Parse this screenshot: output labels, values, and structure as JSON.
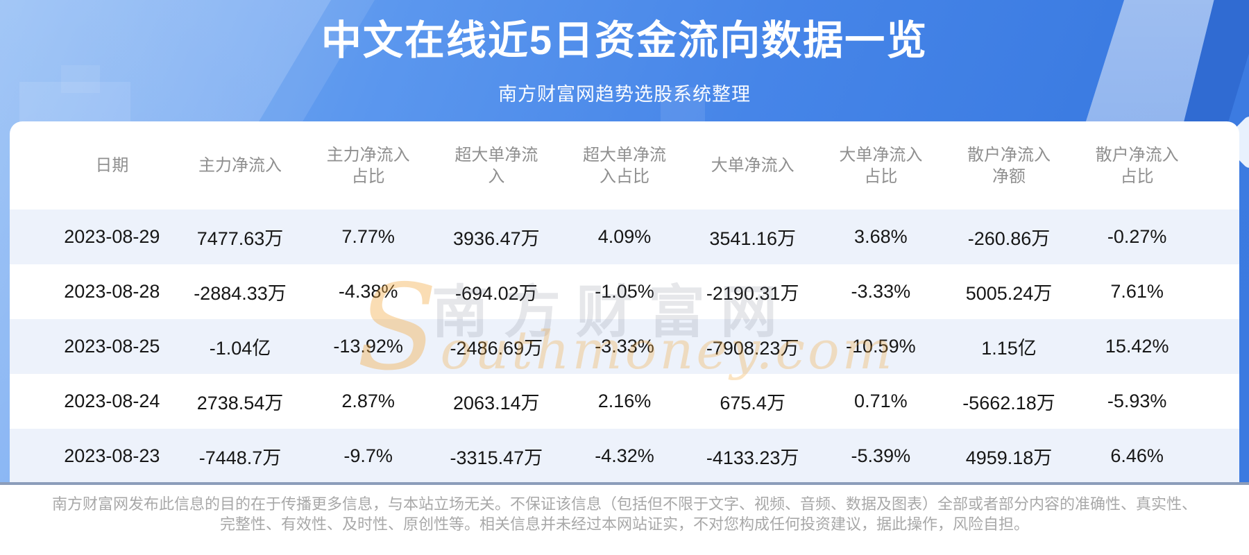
{
  "chart_data": {
    "type": "table",
    "title": "中文在线近5日资金流向数据一览",
    "subtitle": "南方财富网趋势选股系统整理",
    "columns": [
      "日期",
      "主力净流入",
      "主力净流入\n占比",
      "超大单净流\n入",
      "超大单净流\n入占比",
      "大单净流入",
      "大单净流入\n占比",
      "散户净流入\n净额",
      "散户净流入\n占比"
    ],
    "rows": [
      [
        "2023-08-29",
        "7477.63万",
        "7.77%",
        "3936.47万",
        "4.09%",
        "3541.16万",
        "3.68%",
        "-260.86万",
        "-0.27%"
      ],
      [
        "2023-08-28",
        "-2884.33万",
        "-4.38%",
        "-694.02万",
        "-1.05%",
        "-2190.31万",
        "-3.33%",
        "5005.24万",
        "7.61%"
      ],
      [
        "2023-08-25",
        "-1.04亿",
        "-13.92%",
        "-2486.69万",
        "-3.33%",
        "-7908.23万",
        "-10.59%",
        "1.15亿",
        "15.42%"
      ],
      [
        "2023-08-24",
        "2738.54万",
        "2.87%",
        "2063.14万",
        "2.16%",
        "675.4万",
        "0.71%",
        "-5662.18万",
        "-5.93%"
      ],
      [
        "2023-08-23",
        "-7448.7万",
        "-9.7%",
        "-3315.47万",
        "-4.32%",
        "-4133.23万",
        "-5.39%",
        "4959.18万",
        "6.46%"
      ]
    ],
    "layout": {
      "grid": false,
      "row_striping": "odd rows light blue"
    }
  },
  "watermark": {
    "cn": "南方财富网",
    "en": "Southmoney.com"
  },
  "footer": {
    "line1": "南方财富网发布此信息的目的在于传播更多信息，与本站立场无关。不保证该信息（包括但不限于文字、视频、音频、数据及图表）全部或者部分内容的准确性、真实性、",
    "line2": "完整性、有效性、及时性、原创性等。相关信息并未经过本网站证实，不对您构成任何投资建议，据此操作，风险自担。"
  },
  "colors": {
    "hero_blue": "#4685e8",
    "row_stripe": "#edf2fb",
    "divider": "#8c9dba",
    "header_text": "#8f8f8f",
    "cell_text": "#161616",
    "watermark_orange": "#f3a639",
    "title_white": "#ffffff"
  }
}
